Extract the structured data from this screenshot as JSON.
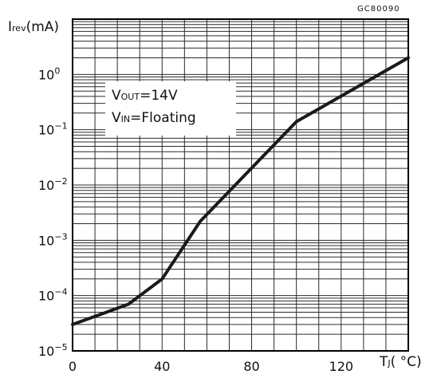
{
  "figure_id": "GC80090",
  "colors": {
    "line": "#1a1a1a",
    "grid": "#2b2b2b",
    "background": "#ffffff"
  },
  "chart_data": {
    "type": "line",
    "title": "",
    "ylabel": {
      "main": "I",
      "sub": "rev",
      "unit": "(mA)"
    },
    "xlabel": {
      "main": "T",
      "sub": "J",
      "unit": "( °C)"
    },
    "y_scale": "log",
    "ylim": [
      1e-05,
      10
    ],
    "xlim": [
      0,
      150
    ],
    "grid": true,
    "x_ticks": [
      {
        "value": 0,
        "label": "0"
      },
      {
        "value": 40,
        "label": "40"
      },
      {
        "value": 80,
        "label": "80"
      },
      {
        "value": 120,
        "label": "120"
      }
    ],
    "y_ticks": [
      {
        "value": 1,
        "base": "10",
        "exp": "0"
      },
      {
        "value": 0.1,
        "base": "10",
        "exp": "−1"
      },
      {
        "value": 0.01,
        "base": "10",
        "exp": "−2"
      },
      {
        "value": 0.001,
        "base": "10",
        "exp": "−3"
      },
      {
        "value": 0.0001,
        "base": "10",
        "exp": "−4"
      },
      {
        "value": 1e-05,
        "base": "10",
        "exp": "−5"
      }
    ],
    "series": [
      {
        "x": [
          0,
          25,
          40,
          57,
          100,
          150
        ],
        "y": [
          3e-05,
          7e-05,
          0.0002,
          0.0022,
          0.14,
          2.0
        ]
      }
    ],
    "legend": {
      "line1": {
        "main": "V",
        "sub": "OUT",
        "rest": "=14V"
      },
      "line2": {
        "main": "V",
        "sub": "IN",
        "rest": "=Floating"
      }
    }
  }
}
